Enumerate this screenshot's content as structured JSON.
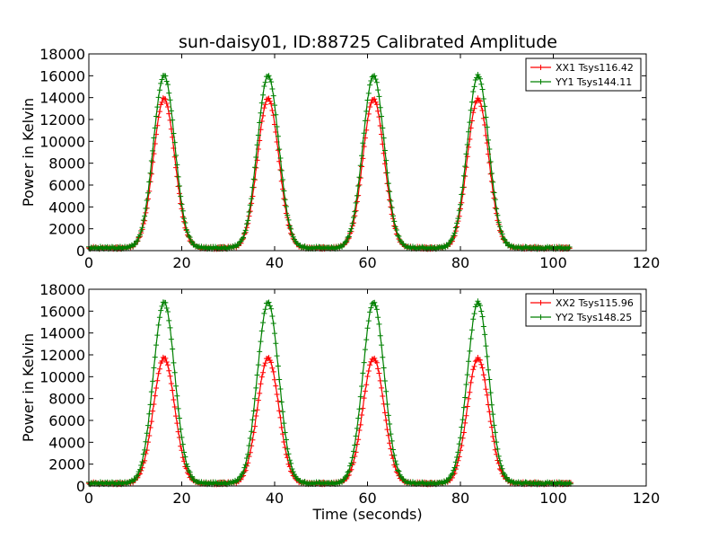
{
  "title": "sun-daisy01, ID:88725 Calibrated Amplitude",
  "chart_data": [
    {
      "type": "line",
      "title": "sun-daisy01, ID:88725 Calibrated Amplitude",
      "xlabel": "",
      "ylabel": "Power in Kelvin",
      "xlim": [
        0,
        120
      ],
      "ylim": [
        0,
        18000
      ],
      "xticks": [
        0,
        20,
        40,
        60,
        80,
        100,
        120
      ],
      "yticks": [
        0,
        2000,
        4000,
        6000,
        8000,
        10000,
        12000,
        14000,
        16000,
        18000
      ],
      "x_range": [
        0,
        103.5
      ],
      "baseline": 250,
      "peak_centers": [
        16.2,
        38.6,
        61.3,
        83.8
      ],
      "peak_width": 2.3,
      "legend_position": "top-right",
      "grid": false,
      "series": [
        {
          "name": "XX1 Tsys116.42",
          "color": "#ff0000",
          "peak": 13900
        },
        {
          "name": "YY1 Tsys144.11",
          "color": "#008000",
          "peak": 16000
        }
      ]
    },
    {
      "type": "line",
      "title": "",
      "xlabel": "Time (seconds)",
      "ylabel": "Power in Kelvin",
      "xlim": [
        0,
        120
      ],
      "ylim": [
        0,
        18000
      ],
      "xticks": [
        0,
        20,
        40,
        60,
        80,
        100,
        120
      ],
      "yticks": [
        0,
        2000,
        4000,
        6000,
        8000,
        10000,
        12000,
        14000,
        16000,
        18000
      ],
      "x_range": [
        0,
        103.8
      ],
      "baseline": 250,
      "peak_centers": [
        16.2,
        38.6,
        61.3,
        83.8
      ],
      "peak_width": 2.3,
      "legend_position": "top-right",
      "grid": false,
      "series": [
        {
          "name": "XX2 Tsys115.96",
          "color": "#ff0000",
          "peak": 11700
        },
        {
          "name": "YY2 Tsys148.25",
          "color": "#008000",
          "peak": 16800
        }
      ]
    }
  ]
}
